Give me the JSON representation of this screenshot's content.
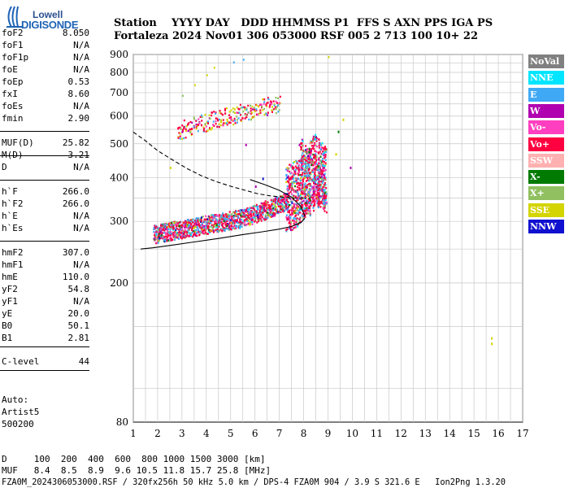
{
  "logo": {
    "top": "Lowell",
    "bottom": "DIGISONDE"
  },
  "header": {
    "row1": "Station    YYYY DAY   DDD HHMMSS P1  FFS S AXN PPS IGA PS",
    "row2": "Fortaleza 2024 Nov01 306 053000 RSF 005 2 713 100 10+ 22"
  },
  "params": [
    {
      "label": "foF2",
      "value": "8.050"
    },
    {
      "label": "foF1",
      "value": "N/A"
    },
    {
      "label": "foF1p",
      "value": "N/A"
    },
    {
      "label": "foE",
      "value": "N/A"
    },
    {
      "label": "foEp",
      "value": "0.53"
    },
    {
      "label": "fxI",
      "value": "8.60"
    },
    {
      "label": "foEs",
      "value": "N/A"
    },
    {
      "label": "fmin",
      "value": "2.90"
    },
    {
      "label": "MUF(D)",
      "value": "25.82"
    },
    {
      "label": "M(D)",
      "value": "3.21"
    },
    {
      "label": "D",
      "value": "N/A"
    },
    {
      "label": "h`F",
      "value": "266.0"
    },
    {
      "label": "h`F2",
      "value": "266.0"
    },
    {
      "label": "h`E",
      "value": "N/A"
    },
    {
      "label": "h`Es",
      "value": "N/A"
    },
    {
      "label": "hmF2",
      "value": "307.0"
    },
    {
      "label": "hmF1",
      "value": "N/A"
    },
    {
      "label": "hmE",
      "value": "110.0"
    },
    {
      "label": "yF2",
      "value": "54.8"
    },
    {
      "label": "yF1",
      "value": "N/A"
    },
    {
      "label": "yE",
      "value": "20.0"
    },
    {
      "label": "B0",
      "value": "50.1"
    },
    {
      "label": "B1",
      "value": "2.81"
    },
    {
      "label": "C-level",
      "value": "44"
    }
  ],
  "auto": {
    "line1": "Auto:",
    "line2": "Artist5",
    "line3": "500200"
  },
  "legend": [
    {
      "label": "NoVal",
      "bg": "#808080",
      "fg": "#ffffff"
    },
    {
      "label": "NNE",
      "bg": "#00e5ff",
      "fg": "#ffffff"
    },
    {
      "label": "E",
      "bg": "#3fa9f5",
      "fg": "#ffffff"
    },
    {
      "label": "W",
      "bg": "#b000b0",
      "fg": "#ffffff"
    },
    {
      "label": "Vo-",
      "bg": "#ff3fbf",
      "fg": "#ffffff"
    },
    {
      "label": "Vo+",
      "bg": "#ff0040",
      "fg": "#ffffff"
    },
    {
      "label": "SSW",
      "bg": "#ffb0b0",
      "fg": "#ffffff"
    },
    {
      "label": "X-",
      "bg": "#007a00",
      "fg": "#ffffff"
    },
    {
      "label": "X+",
      "bg": "#90c060",
      "fg": "#ffffff"
    },
    {
      "label": "SSE",
      "bg": "#d4d400",
      "fg": "#ffffff"
    },
    {
      "label": "NNW",
      "bg": "#1010d0",
      "fg": "#ffffff"
    }
  ],
  "footer": {
    "line1": "D     100  200  400  600  800 1000 1500 3000 [km]",
    "line2": "MUF   8.4  8.5  8.9  9.6 10.5 11.8 15.7 25.8 [MHz]",
    "line3": "FZA0M_2024306053000.RSF / 320fx256h 50 kHz 5.0 km / DPS-4 FZA0M 904 / 3.9 S 321.6 E   Ion2Png 1.3.20"
  },
  "chart_data": {
    "type": "scatter",
    "xlim": [
      1,
      17
    ],
    "ylim": [
      80,
      900
    ],
    "y_scale": "log",
    "xticks": [
      1,
      2,
      3,
      4,
      5,
      6,
      7,
      8,
      9,
      10,
      11,
      12,
      13,
      14,
      15,
      16,
      17
    ],
    "yticks": [
      80,
      200,
      300,
      400,
      500,
      600,
      700,
      800,
      900
    ],
    "grid": true,
    "legend_position": "right",
    "colors": {
      "NoVal": "#808080",
      "NNE": "#00e5ff",
      "E": "#3fa9f5",
      "W": "#b000b0",
      "Vo-": "#ff3fbf",
      "Vo+": "#ff0040",
      "SSW": "#ffb0b0",
      "X-": "#007a00",
      "X+": "#90c060",
      "SSE": "#d4d400",
      "NNW": "#1010d0"
    },
    "traces": [
      {
        "kind": "F-layer",
        "x": [
          1.8,
          2.4,
          3.0,
          3.6,
          4.2,
          4.8,
          5.4,
          6.0,
          6.5,
          7.0,
          7.4,
          7.8,
          8.1,
          8.4,
          8.7,
          9.0
        ],
        "y": [
          275,
          280,
          285,
          290,
          295,
          300,
          305,
          315,
          325,
          335,
          345,
          360,
          390,
          420,
          400,
          380
        ]
      },
      {
        "kind": "multi-hop",
        "x": [
          2.8,
          3.4,
          4.0,
          4.6,
          5.2,
          5.8,
          6.4,
          7.0
        ],
        "y": [
          545,
          565,
          580,
          595,
          610,
          625,
          640,
          660
        ]
      },
      {
        "kind": "high-echo",
        "x": [
          3.0,
          3.5,
          4.0,
          4.3,
          5.1,
          5.5,
          9.0
        ],
        "y": [
          690,
          740,
          790,
          830,
          860,
          875,
          890
        ]
      }
    ],
    "sparse_points": [
      {
        "x": 5.6,
        "y": 500,
        "c": "W"
      },
      {
        "x": 6.0,
        "y": 380,
        "c": "W"
      },
      {
        "x": 7.8,
        "y": 500,
        "c": "W"
      },
      {
        "x": 9.3,
        "y": 470,
        "c": "SSE"
      },
      {
        "x": 9.6,
        "y": 590,
        "c": "SSE"
      },
      {
        "x": 9.4,
        "y": 545,
        "c": "X-"
      },
      {
        "x": 9.9,
        "y": 430,
        "c": "W"
      },
      {
        "x": 15.7,
        "y": 135,
        "c": "SSE"
      },
      {
        "x": 15.7,
        "y": 140,
        "c": "SSE"
      },
      {
        "x": 4.4,
        "y": 295,
        "c": "X-"
      },
      {
        "x": 6.3,
        "y": 400,
        "c": "NNW"
      },
      {
        "x": 2.5,
        "y": 430,
        "c": "SSE"
      }
    ],
    "profile_curve": {
      "style": "solid",
      "x": [
        1.3,
        1.8,
        2.5,
        3.5,
        4.5,
        5.5,
        6.3,
        7.0,
        7.5,
        7.9,
        8.05
      ],
      "y": [
        250,
        252,
        256,
        262,
        268,
        275,
        280,
        285,
        290,
        298,
        307
      ]
    },
    "profile_curve_upper": {
      "style": "solid",
      "x": [
        5.8,
        6.4,
        7.0,
        7.5,
        7.9,
        8.05
      ],
      "y": [
        395,
        382,
        368,
        352,
        330,
        310
      ]
    },
    "muf_curve": {
      "style": "dashed",
      "x": [
        1.0,
        1.5,
        2.0,
        2.6,
        3.2,
        3.8,
        4.4,
        5.0,
        5.6,
        6.1,
        6.6,
        7.1,
        7.6,
        8.0
      ],
      "y": [
        540,
        510,
        478,
        450,
        425,
        405,
        390,
        378,
        368,
        360,
        355,
        352,
        350,
        350
      ]
    },
    "xlabel": "",
    "ylabel": ""
  }
}
